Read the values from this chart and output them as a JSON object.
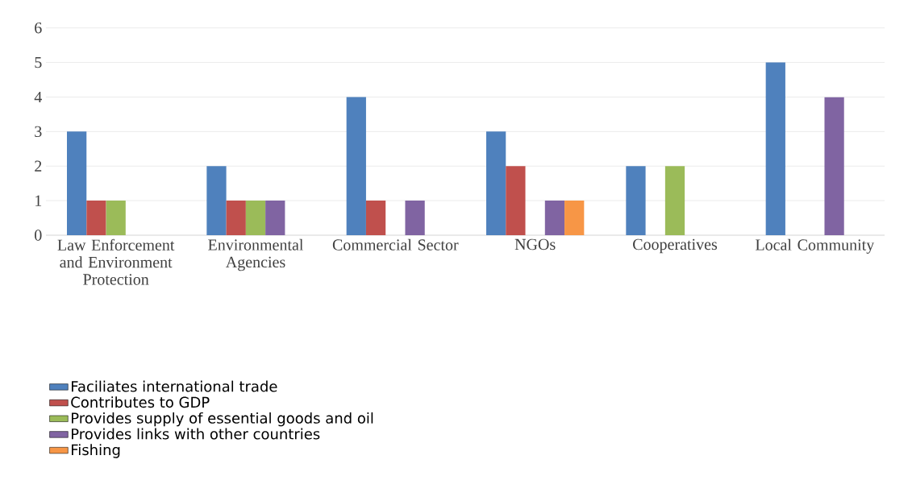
{
  "chart_data": {
    "type": "bar",
    "categories": [
      "Law Enforcement and Environment Protection",
      "Environmental Agencies",
      "Commercial Sector",
      "NGOs",
      "Cooperatives",
      "Local Community"
    ],
    "series": [
      {
        "name": "Faciliates international trade",
        "color": "#4f81bd",
        "values": [
          3,
          2,
          4,
          3,
          2,
          5
        ]
      },
      {
        "name": "Contributes to GDP",
        "color": "#c0504d",
        "values": [
          1,
          1,
          1,
          2,
          0,
          0
        ]
      },
      {
        "name": "Provides supply of essential goods and oil",
        "color": "#9bbb59",
        "values": [
          1,
          1,
          0,
          0,
          2,
          0
        ]
      },
      {
        "name": "Provides links with other countries",
        "color": "#8064a2",
        "values": [
          0,
          1,
          1,
          1,
          0,
          4
        ]
      },
      {
        "name": "Fishing",
        "color": "#f79646",
        "values": [
          0,
          0,
          0,
          1,
          0,
          0
        ]
      }
    ],
    "ylim": [
      0,
      6
    ],
    "yticks": [
      0,
      1,
      2,
      3,
      4,
      5,
      6
    ],
    "grid": "y",
    "legend": "bottom left"
  }
}
